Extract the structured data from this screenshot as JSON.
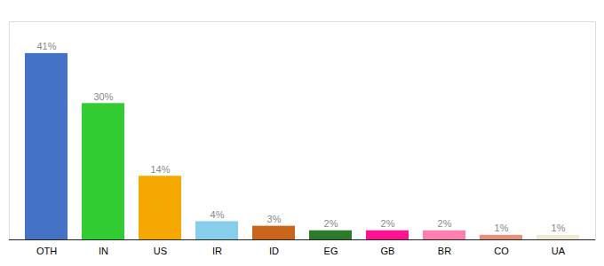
{
  "chart_data": {
    "type": "bar",
    "categories": [
      "OTH",
      "IN",
      "US",
      "IR",
      "ID",
      "EG",
      "GB",
      "BR",
      "CO",
      "UA"
    ],
    "values": [
      41,
      30,
      14,
      4,
      3,
      2,
      2,
      2,
      1,
      1
    ],
    "value_labels": [
      "41%",
      "30%",
      "14%",
      "4%",
      "3%",
      "2%",
      "2%",
      "2%",
      "1%",
      "1%"
    ],
    "colors": [
      "#4472c4",
      "#33cc33",
      "#f5a800",
      "#87ceeb",
      "#c8651a",
      "#2d7a2d",
      "#ff1493",
      "#ff80b0",
      "#e8907a",
      "#f0ead6"
    ],
    "ylim": [
      0,
      48
    ],
    "data_labels": true,
    "tick_labels": "x",
    "grid": false
  }
}
